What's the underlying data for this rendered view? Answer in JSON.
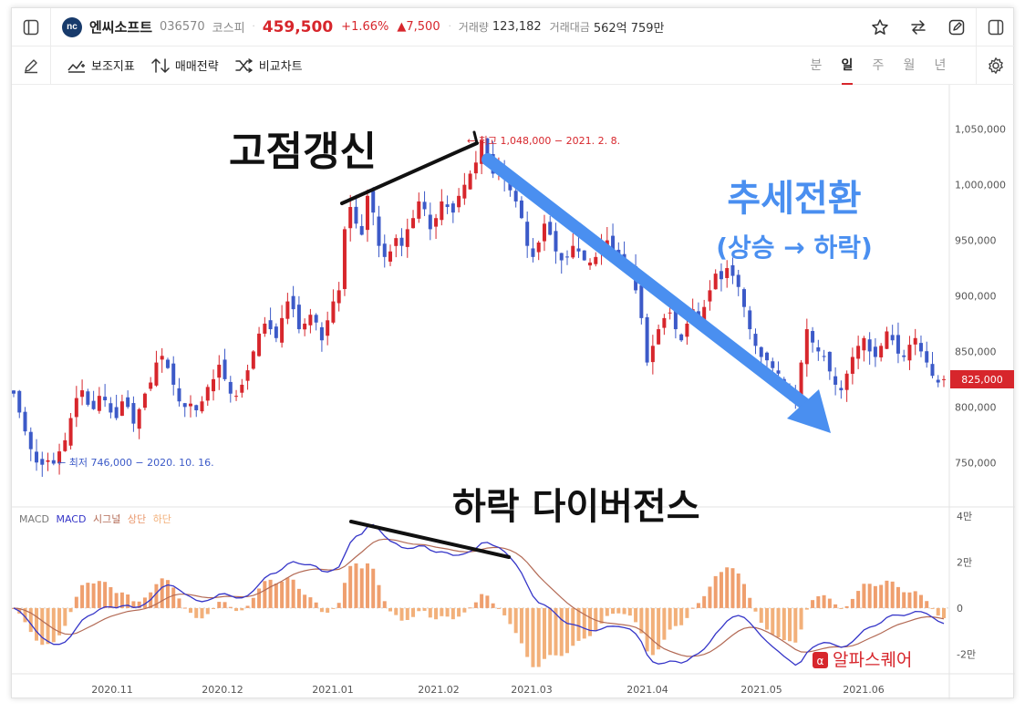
{
  "header": {
    "logo_text": "nc",
    "stock_name": "엔씨소프트",
    "stock_code": "036570",
    "market": "코스피",
    "separator": "·",
    "price": "459,500",
    "change_pct": "+1.66%",
    "change_amt": "▲7,500",
    "volume_label": "거래량",
    "volume_value": "123,182",
    "turnover_label": "거래대금",
    "turnover_value": "562억 759만"
  },
  "toolbar": {
    "indicators_label": "보조지표",
    "strategy_label": "매매전략",
    "compare_label": "비교차트",
    "periods": [
      "분",
      "일",
      "주",
      "월",
      "년"
    ],
    "active_period": "일"
  },
  "chart_data": {
    "type": "candlestick",
    "x_ticks": [
      "2020.11",
      "2020.12",
      "2021.01",
      "2021.02",
      "2021.03",
      "2021.04",
      "2021.05",
      "2021.06"
    ],
    "y_ticks": [
      "1,050,000",
      "1,000,000",
      "950,000",
      "900,000",
      "850,000",
      "800,000",
      "750,000"
    ],
    "ylim": [
      710000,
      1090000
    ],
    "current_price": 825000,
    "current_price_label": "825,000",
    "high_label": "← 최고 1,048,000 − 2021. 2. 8.",
    "low_label": "← 최저 746,000 − 2020. 10. 16.",
    "closes": [
      812000,
      795000,
      778000,
      762000,
      750000,
      748000,
      752000,
      749000,
      760000,
      770000,
      790000,
      808000,
      815000,
      802000,
      798000,
      810000,
      806000,
      795000,
      790000,
      805000,
      800000,
      785000,
      798000,
      812000,
      822000,
      840000,
      846000,
      835000,
      820000,
      805000,
      800000,
      803000,
      797000,
      805000,
      818000,
      825000,
      838000,
      825000,
      812000,
      810000,
      820000,
      833000,
      850000,
      866000,
      875000,
      870000,
      862000,
      880000,
      895000,
      888000,
      870000,
      875000,
      883000,
      876000,
      860000,
      878000,
      895000,
      905000,
      960000,
      980000,
      965000,
      955000,
      990000,
      975000,
      945000,
      935000,
      940000,
      952000,
      945000,
      960000,
      970000,
      985000,
      978000,
      960000,
      970000,
      985000,
      980000,
      975000,
      990000,
      1000000,
      1010000,
      1020000,
      1040000,
      1025000,
      1010000,
      1015000,
      1005000,
      995000,
      985000,
      970000,
      945000,
      935000,
      948000,
      965000,
      955000,
      940000,
      932000,
      935000,
      945000,
      940000,
      932000,
      930000,
      935000,
      945000,
      950000,
      940000,
      935000,
      930000,
      925000,
      905000,
      880000,
      840000,
      855000,
      870000,
      880000,
      885000,
      870000,
      860000,
      875000,
      888000,
      880000,
      890000,
      905000,
      920000,
      915000,
      925000,
      918000,
      908000,
      890000,
      870000,
      855000,
      845000,
      842000,
      835000,
      830000,
      820000,
      815000,
      805000,
      840000,
      870000,
      858000,
      850000,
      845000,
      832000,
      820000,
      815000,
      830000,
      845000,
      855000,
      862000,
      850000,
      845000,
      855000,
      868000,
      860000,
      848000,
      845000,
      856000,
      862000,
      850000,
      840000,
      828000,
      822000,
      825000
    ],
    "macd_label": "MACD",
    "macd_series_name": "MACD",
    "signal_series_name": "시그널",
    "hist_up_label": "상단",
    "hist_down_label": "하단",
    "macd_y_ticks": [
      "4만",
      "2만",
      "0",
      "-2만"
    ],
    "macd_ylim": [
      -27000,
      42000
    ]
  },
  "annotations": {
    "new_high": "고점갱신",
    "trend_title": "추세전환",
    "trend_sub": "(상승 → 하락)",
    "divergence": "하락 다이버전스"
  },
  "watermark": {
    "text": "알파스퀘어"
  },
  "colors": {
    "up": "#d7262c",
    "down": "#3c5ac8",
    "macd": "#3535c8",
    "signal": "#b36a55",
    "hist": "#f2b07a",
    "trend_arrow": "#4a8ff0",
    "trend_text": "#4a8ff0"
  }
}
